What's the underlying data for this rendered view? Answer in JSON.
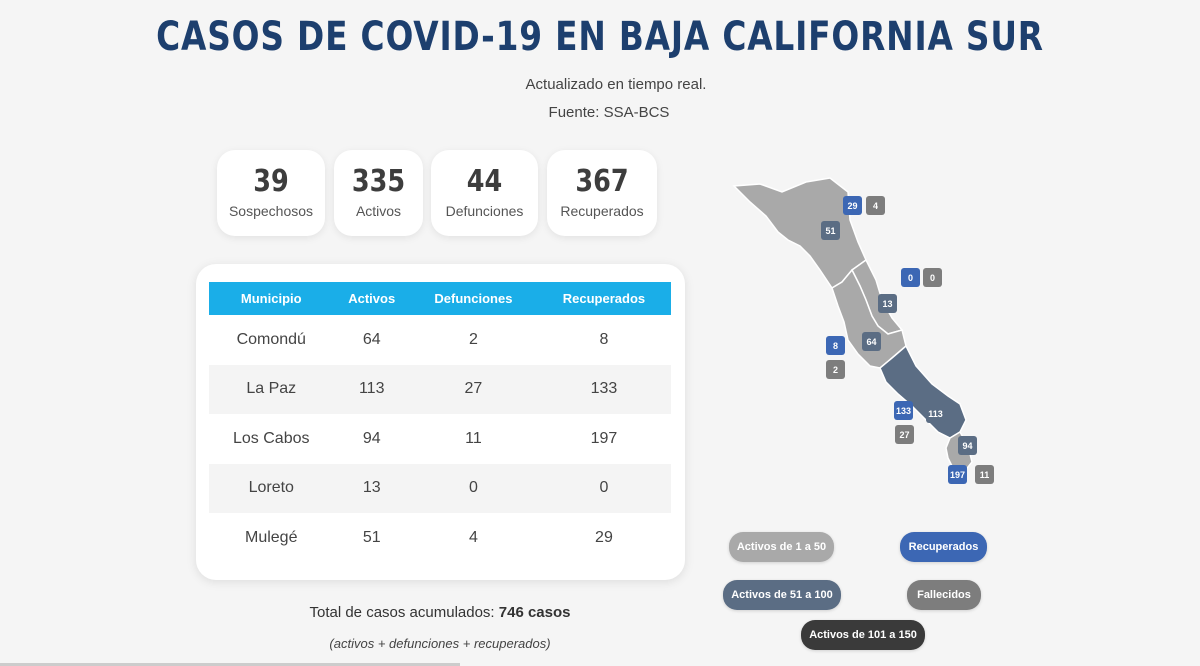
{
  "page": {
    "title": "CASOS DE COVID-19 EN BAJA CALIFORNIA SUR",
    "subtitle": "Actualizado en tiempo real.",
    "source": "Fuente: SSA-BCS"
  },
  "stats": [
    {
      "value": "39",
      "label": "Sospechosos"
    },
    {
      "value": "335",
      "label": "Activos"
    },
    {
      "value": "44",
      "label": "Defunciones"
    },
    {
      "value": "367",
      "label": "Recuperados"
    }
  ],
  "table": {
    "headers": [
      "Municipio",
      "Activos",
      "Defunciones",
      "Recuperados"
    ],
    "rows": [
      [
        "Comondú",
        "64",
        "2",
        "8"
      ],
      [
        "La Paz",
        "113",
        "27",
        "133"
      ],
      [
        "Los Cabos",
        "94",
        "11",
        "197"
      ],
      [
        "Loreto",
        "13",
        "0",
        "0"
      ],
      [
        "Mulegé",
        "51",
        "4",
        "29"
      ]
    ]
  },
  "totals": {
    "label": "Total de casos acumulados:",
    "value": "746 casos",
    "note": "(activos + defunciones + recuperados)"
  },
  "map": {
    "badges": [
      {
        "municipio": "Mulegé",
        "kind": "recuperados",
        "value": "29"
      },
      {
        "municipio": "Mulegé",
        "kind": "fallecidos",
        "value": "4"
      },
      {
        "municipio": "Mulegé",
        "kind": "activos",
        "value": "51"
      },
      {
        "municipio": "Loreto",
        "kind": "recuperados",
        "value": "0"
      },
      {
        "municipio": "Loreto",
        "kind": "fallecidos",
        "value": "0"
      },
      {
        "municipio": "Loreto",
        "kind": "activos",
        "value": "13"
      },
      {
        "municipio": "Comondú",
        "kind": "recuperados",
        "value": "8"
      },
      {
        "municipio": "Comondú",
        "kind": "activos",
        "value": "64"
      },
      {
        "municipio": "Comondú",
        "kind": "fallecidos",
        "value": "2"
      },
      {
        "municipio": "La Paz",
        "kind": "recuperados",
        "value": "133"
      },
      {
        "municipio": "La Paz",
        "kind": "activos",
        "value": "113"
      },
      {
        "municipio": "La Paz",
        "kind": "fallecidos",
        "value": "27"
      },
      {
        "municipio": "Los Cabos",
        "kind": "activos",
        "value": "94"
      },
      {
        "municipio": "Los Cabos",
        "kind": "recuperados",
        "value": "197"
      },
      {
        "municipio": "Los Cabos",
        "kind": "fallecidos",
        "value": "11"
      }
    ]
  },
  "legend": {
    "activos_1_50": "Activos de 1 a 50",
    "recuperados": "Recuperados",
    "activos_51_100": "Activos de 51 a 100",
    "fallecidos": "Fallecidos",
    "activos_101_150": "Activos de 101 a 150"
  },
  "colors": {
    "title": "#1d3f6e",
    "table_header": "#1aaee8",
    "region_low": "#a9a9a9",
    "region_mid": "#5b6d84",
    "recuperados": "#3c67b4",
    "fallecidos": "#7d7d7d",
    "activos_high": "#3a3a3a"
  }
}
